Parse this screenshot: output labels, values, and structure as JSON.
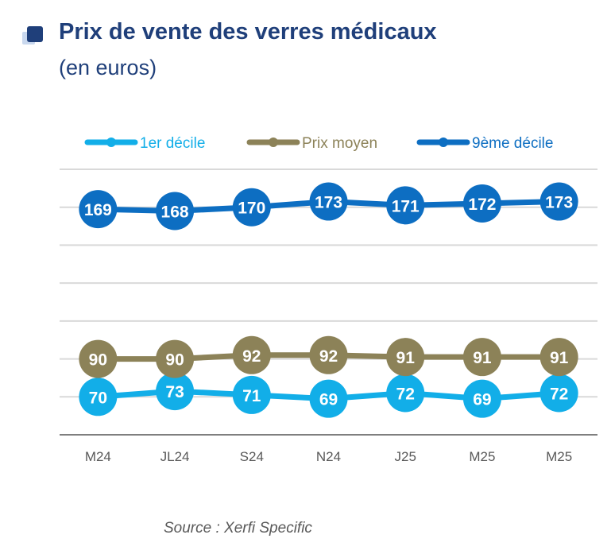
{
  "header": {
    "title": "Prix de vente des verres médicaux",
    "subtitle": "(en euros)"
  },
  "footer": {
    "source": "Source : Xerfi Specific"
  },
  "chart_data": {
    "type": "line",
    "title": "Prix de vente des verres médicaux",
    "subtitle": "(en euros)",
    "xlabel": "",
    "ylabel": "",
    "categories": [
      "M24",
      "JL24",
      "S24",
      "N24",
      "J25",
      "M25",
      "M25"
    ],
    "ylim": [
      50,
      190
    ],
    "grid": true,
    "legend_position": "top",
    "y_ticks_shown": false,
    "series": [
      {
        "name": "1er décile",
        "color": "#12aee8",
        "values": [
          70,
          73,
          71,
          69,
          72,
          69,
          72
        ]
      },
      {
        "name": "Prix moyen",
        "color": "#8c8258",
        "values": [
          90,
          90,
          92,
          92,
          91,
          91,
          91
        ]
      },
      {
        "name": "9ème décile",
        "color": "#0d6ec2",
        "values": [
          169,
          168,
          170,
          173,
          171,
          172,
          173
        ]
      }
    ]
  }
}
